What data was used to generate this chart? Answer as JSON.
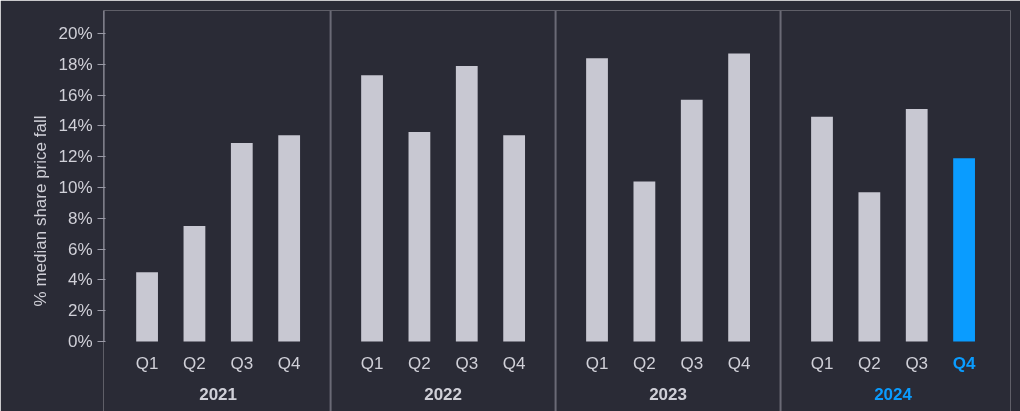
{
  "chart_data": {
    "type": "bar",
    "ylabel": "% median share price fall",
    "categories": [
      "Q1",
      "Q2",
      "Q3",
      "Q4",
      "Q1",
      "Q2",
      "Q3",
      "Q4",
      "Q1",
      "Q2",
      "Q3",
      "Q4",
      "Q1",
      "Q2",
      "Q3",
      "Q4"
    ],
    "values": [
      4.5,
      7.5,
      12.9,
      13.4,
      17.3,
      13.6,
      17.9,
      13.4,
      18.4,
      10.4,
      15.7,
      18.7,
      14.6,
      9.7,
      15.1,
      11.9
    ],
    "colors": [
      "#c8c8d2",
      "#c8c8d2",
      "#c8c8d2",
      "#c8c8d2",
      "#c8c8d2",
      "#c8c8d2",
      "#c8c8d2",
      "#c8c8d2",
      "#c8c8d2",
      "#c8c8d2",
      "#c8c8d2",
      "#c8c8d2",
      "#c8c8d2",
      "#c8c8d2",
      "#c8c8d2",
      "#0a9cff"
    ],
    "annotations": [
      "2021",
      "2022",
      "2023",
      "2024"
    ],
    "ylim": [
      0,
      21.5
    ],
    "yticks": [
      {
        "value": 0,
        "label": "0%"
      },
      {
        "value": 2,
        "label": "2%"
      },
      {
        "value": 4,
        "label": "4%"
      },
      {
        "value": 6,
        "label": "6%"
      },
      {
        "value": 8,
        "label": "8%"
      },
      {
        "value": 10,
        "label": "10%"
      },
      {
        "value": 12,
        "label": "12%"
      },
      {
        "value": 14,
        "label": "14%"
      },
      {
        "value": 16,
        "label": "16%"
      },
      {
        "value": 18,
        "label": "18%"
      },
      {
        "value": 20,
        "label": "20%"
      }
    ],
    "grid": false
  }
}
